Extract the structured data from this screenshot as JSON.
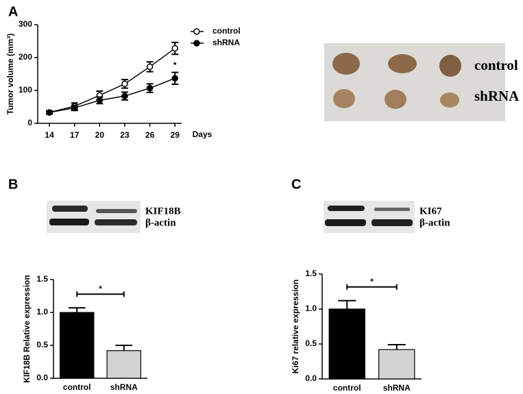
{
  "chart_data": [
    {
      "type": "line",
      "panel": "A",
      "x": [
        14,
        17,
        20,
        23,
        26,
        29
      ],
      "xlabel": "Days",
      "ylabel": "Tumor volume (mm³)",
      "xlim": [
        12.6,
        29.8
      ],
      "xticks": [
        14,
        17,
        20,
        23,
        26,
        29
      ],
      "ylim": [
        0,
        300
      ],
      "yticks": [
        0,
        100,
        200,
        300
      ],
      "series": [
        {
          "name": "control",
          "color": "#000000",
          "marker": "open-circle",
          "values": [
            33,
            52,
            85,
            120,
            172,
            228
          ],
          "errors": [
            5,
            10,
            13,
            13,
            15,
            18
          ]
        },
        {
          "name": "shRNA",
          "color": "#000000",
          "marker": "filled-circle",
          "values": [
            33,
            47,
            70,
            83,
            107,
            137
          ],
          "errors": [
            4,
            8,
            10,
            12,
            13,
            18
          ]
        }
      ],
      "annotations": [
        {
          "text": "*",
          "x": 29
        }
      ]
    },
    {
      "type": "bar",
      "panel": "B",
      "blot_labels": [
        "KIF18B",
        "β-actin"
      ],
      "categories": [
        "control",
        "shRNA"
      ],
      "ylabel": "KIF18B Relative expression",
      "values": [
        1.0,
        0.42
      ],
      "errors": [
        0.07,
        0.08
      ],
      "colors": [
        "#000000",
        "#d3d3d3"
      ],
      "ylim": [
        0,
        1.5
      ],
      "yticks": [
        {
          "value": 0,
          "label": "0.0"
        },
        0.5,
        {
          "value": 1,
          "label": "1.0"
        },
        1.5
      ],
      "significance": "*"
    },
    {
      "type": "bar",
      "panel": "C",
      "blot_labels": [
        "KI67",
        "β-actin"
      ],
      "categories": [
        "control",
        "shRNA"
      ],
      "ylabel": "Ki67 relative expression",
      "values": [
        1.0,
        0.42
      ],
      "errors": [
        0.12,
        0.07
      ],
      "colors": [
        "#000000",
        "#d3d3d3"
      ],
      "ylim": [
        0,
        1.5
      ],
      "yticks": [
        {
          "value": 0,
          "label": "0.0"
        },
        0.5,
        {
          "value": 1,
          "label": "1.0"
        },
        1.5
      ],
      "significance": "*"
    }
  ],
  "photo": {
    "labels": [
      "control",
      "shRNA"
    ]
  }
}
